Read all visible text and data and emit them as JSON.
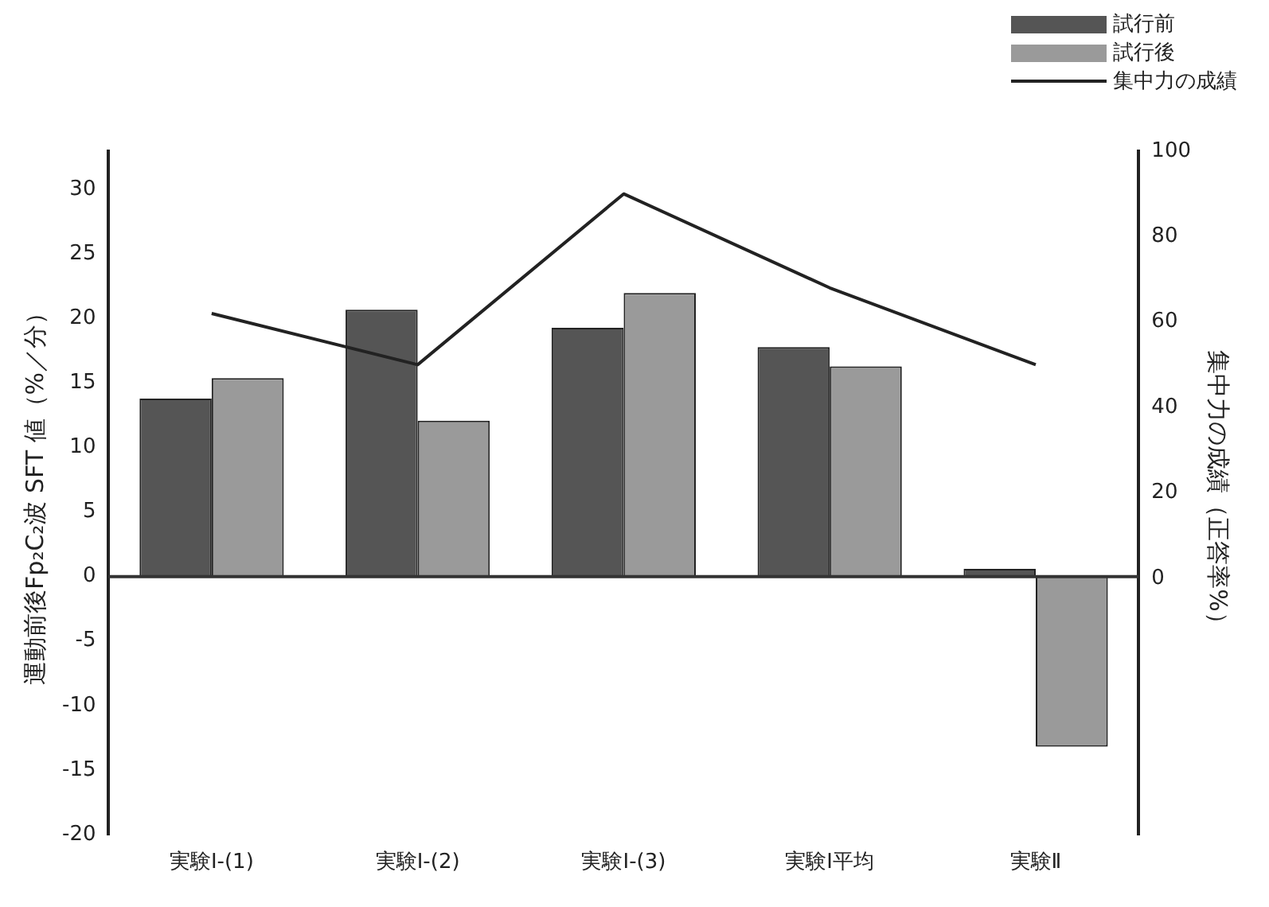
{
  "chart_data": {
    "type": "bar",
    "categories": [
      "実験Ⅰ-(1)",
      "実験Ⅰ-(2)",
      "実験Ⅰ-(3)",
      "実験Ⅰ平均",
      "実験Ⅱ"
    ],
    "series": [
      {
        "name": "試行前",
        "color": "#555555",
        "values": [
          13.8,
          20.7,
          19.3,
          17.8,
          0.6
        ]
      },
      {
        "name": "試行後",
        "color": "#9a9a9a",
        "values": [
          15.4,
          12.1,
          22.0,
          16.3,
          -13.2
        ]
      },
      {
        "name": "集中力の成績",
        "type": "line",
        "axis": "y2",
        "color": "#222222",
        "values": [
          62,
          50,
          90,
          68,
          50
        ]
      }
    ],
    "ylabel": "運動前後Fp₂C₂波 SFT 値（%／分）",
    "y2label": "集中力の成績（正答率%）",
    "ylim": [
      -20,
      33
    ],
    "yticks": [
      -20,
      -15,
      -10,
      -5,
      0,
      5,
      10,
      15,
      20,
      25,
      30
    ],
    "y2lim": [
      -60,
      100
    ],
    "y2ticks": [
      0,
      20,
      40,
      60,
      80,
      100
    ],
    "ref_lines": [
      {
        "axis": "y",
        "value": 0,
        "color": "#333333"
      }
    ],
    "grid": false,
    "legend": "top right",
    "marker": "none",
    "line_style": "solid"
  }
}
